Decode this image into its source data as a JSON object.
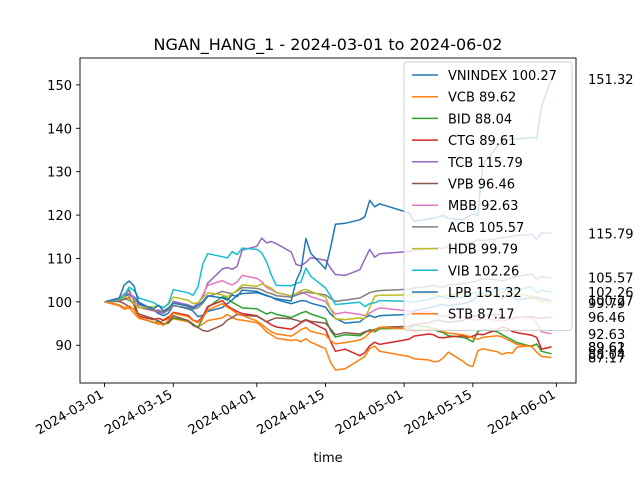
{
  "chart_data": {
    "type": "line",
    "title": "NGAN_HANG_1 - 2024-03-01 to 2024-06-02",
    "xlabel": "time",
    "ylabel": "",
    "x_type": "date",
    "xlim": [
      "2024-02-25",
      "2024-06-05"
    ],
    "ylim": [
      81.3,
      156.2
    ],
    "x_ticks": [
      "2024-03-01",
      "2024-03-15",
      "2024-04-01",
      "2024-04-15",
      "2024-05-01",
      "2024-05-15",
      "2024-06-01"
    ],
    "y_ticks": [
      90,
      100,
      110,
      120,
      130,
      140,
      150
    ],
    "grid": false,
    "legend_position": "upper-right",
    "dates": [
      "2024-03-01",
      "2024-03-04",
      "2024-03-05",
      "2024-03-06",
      "2024-03-07",
      "2024-03-08",
      "2024-03-11",
      "2024-03-12",
      "2024-03-13",
      "2024-03-14",
      "2024-03-15",
      "2024-03-18",
      "2024-03-19",
      "2024-03-20",
      "2024-03-21",
      "2024-03-22",
      "2024-03-25",
      "2024-03-26",
      "2024-03-27",
      "2024-03-28",
      "2024-03-29",
      "2024-04-01",
      "2024-04-02",
      "2024-04-03",
      "2024-04-04",
      "2024-04-05",
      "2024-04-08",
      "2024-04-09",
      "2024-04-10",
      "2024-04-11",
      "2024-04-12",
      "2024-04-15",
      "2024-04-16",
      "2024-04-17",
      "2024-04-19",
      "2024-04-22",
      "2024-04-23",
      "2024-04-24",
      "2024-04-25",
      "2024-04-26",
      "2024-05-02",
      "2024-05-03",
      "2024-05-06",
      "2024-05-07",
      "2024-05-08",
      "2024-05-09",
      "2024-05-10",
      "2024-05-13",
      "2024-05-14",
      "2024-05-15",
      "2024-05-16",
      "2024-05-17",
      "2024-05-20",
      "2024-05-21",
      "2024-05-22",
      "2024-05-23",
      "2024-05-24",
      "2024-05-27",
      "2024-05-28",
      "2024-05-29",
      "2024-05-31"
    ],
    "series": [
      {
        "name": "VNINDEX 100.27",
        "end_label": "100.27",
        "color": "#1f77b4",
        "values": [
          100,
          100.6,
          101.4,
          101.8,
          101.2,
          99.9,
          98.1,
          97.3,
          96.8,
          97.4,
          99.2,
          98.4,
          97.9,
          96.6,
          96.9,
          97.8,
          98.7,
          99.6,
          100.4,
          101.6,
          101.9,
          102.1,
          101.8,
          101.4,
          101.1,
          100.5,
          99.6,
          99.9,
          100.3,
          100.2,
          99.7,
          98.8,
          97.2,
          96.2,
          95.1,
          95.4,
          96.3,
          96.9,
          96.4,
          96.8,
          97.1,
          97.9,
          98.6,
          98.9,
          99.2,
          99.4,
          99.1,
          99.6,
          99.9,
          100.3,
          101.6,
          101.9,
          101.3,
          100.8,
          101.5,
          101.1,
          100.5,
          100.9,
          101.1,
          100.7,
          100.27
        ]
      },
      {
        "name": "VCB 89.62",
        "end_label": "89.62",
        "color": "#ff7f0e",
        "values": [
          100,
          99.1,
          98.3,
          98.6,
          97.4,
          96.2,
          95.3,
          94.8,
          95.9,
          96.6,
          96.1,
          95.4,
          94.7,
          94.2,
          94.9,
          95.7,
          96.3,
          97.1,
          96.4,
          95.9,
          95.8,
          95.2,
          94.3,
          93.1,
          92.4,
          91.6,
          91.1,
          91.3,
          90.8,
          91.5,
          90.7,
          89.2,
          86.1,
          84.3,
          84.6,
          86.7,
          87.4,
          89.3,
          89.8,
          88.6,
          87.4,
          86.9,
          86.6,
          86.2,
          86.3,
          87.1,
          88.4,
          86.3,
          85.4,
          85.1,
          88.7,
          89.2,
          88.5,
          87.9,
          88.3,
          88.2,
          89.6,
          89.9,
          90.2,
          89.1,
          89.62
        ]
      },
      {
        "name": "BID 88.04",
        "end_label": "88.04",
        "color": "#2ca02c",
        "values": [
          100,
          100.4,
          101.1,
          102.8,
          100.3,
          96.4,
          95.2,
          95.6,
          94.8,
          95.1,
          96.3,
          95.7,
          94.9,
          94.1,
          96.2,
          98.7,
          101.2,
          100.8,
          99.9,
          99.3,
          98.6,
          98.4,
          97.8,
          97.2,
          97.6,
          97.1,
          96.4,
          96.9,
          97.4,
          97.8,
          97.2,
          96.1,
          93.4,
          91.9,
          92.4,
          92.2,
          92.9,
          93.6,
          93.1,
          93.8,
          93.9,
          94.6,
          94.2,
          93.7,
          93.2,
          92.9,
          92.2,
          91.8,
          91.4,
          90.8,
          93.2,
          93.6,
          93.1,
          92.4,
          91.8,
          91.2,
          90.6,
          89.7,
          90.3,
          88.6,
          88.04
        ]
      },
      {
        "name": "CTG 89.61",
        "end_label": "89.61",
        "color": "#d62728",
        "values": [
          100,
          100.2,
          100.6,
          101.1,
          99.3,
          96.7,
          95.9,
          96.2,
          95.7,
          96.3,
          97.6,
          96.9,
          95.8,
          95.4,
          96.7,
          98.9,
          100.3,
          99.1,
          98.4,
          97.8,
          97.3,
          96.8,
          96.1,
          95.4,
          94.7,
          94.2,
          93.7,
          94.4,
          95.2,
          95.8,
          95.3,
          93.6,
          90.9,
          88.6,
          89.1,
          87.6,
          88.3,
          89.9,
          90.7,
          90.2,
          91.4,
          92.1,
          92.6,
          92.4,
          91.8,
          91.7,
          91.9,
          92.2,
          91.8,
          92.1,
          92.6,
          92.4,
          93.6,
          94.2,
          93.9,
          93.2,
          92.9,
          92.3,
          91.8,
          89.1,
          89.61
        ]
      },
      {
        "name": "TCB 115.79",
        "end_label": "115.79",
        "color": "#9467bd",
        "values": [
          100,
          100.5,
          101.3,
          101.6,
          100.8,
          99.4,
          98.1,
          97.6,
          97.4,
          98.2,
          100.1,
          99.3,
          98.8,
          99.6,
          101.2,
          104.3,
          107.6,
          107.9,
          107.5,
          108.2,
          111.9,
          112.8,
          114.7,
          113.6,
          113.9,
          113.4,
          111.5,
          108.6,
          108.3,
          109.1,
          110.2,
          109.6,
          107.8,
          106.3,
          106.1,
          107.4,
          109.8,
          112.1,
          110.3,
          111.1,
          111.6,
          111.9,
          112.2,
          112.4,
          112.5,
          112.3,
          112.8,
          113.2,
          113.5,
          113.7,
          114.3,
          114.1,
          114.6,
          114.8,
          114.9,
          115.1,
          115.3,
          115.6,
          114.4,
          115.9,
          115.79
        ]
      },
      {
        "name": "VPB 96.46",
        "end_label": "96.46",
        "color": "#8c564b",
        "values": [
          100,
          100.1,
          99.6,
          98.9,
          98.3,
          97.2,
          96.1,
          95.6,
          94.9,
          95.3,
          96.8,
          95.7,
          94.6,
          94.1,
          93.4,
          93.2,
          94.7,
          95.8,
          96.4,
          97.1,
          96.9,
          96.7,
          96.1,
          95.4,
          95.9,
          96.3,
          96.1,
          95.8,
          95.4,
          95.9,
          95.5,
          95.1,
          93.8,
          92.4,
          92.9,
          92.6,
          93.1,
          93.3,
          93.6,
          94.1,
          94.4,
          94.8,
          95.2,
          95.6,
          95.8,
          95.5,
          95.3,
          95.7,
          96.2,
          96.6,
          96.9,
          96.8,
          97.1,
          96.7,
          96.3,
          96.1,
          96.4,
          96.6,
          96.2,
          96.3,
          96.46
        ]
      },
      {
        "name": "MBB 92.63",
        "end_label": "92.63",
        "color": "#e377c2",
        "values": [
          100,
          100.8,
          101.9,
          102.4,
          100.9,
          98.7,
          97.9,
          98.2,
          97.6,
          98.4,
          99.8,
          99.1,
          98.5,
          99.3,
          101.6,
          103.8,
          104.9,
          104.3,
          103.9,
          104.6,
          106.1,
          105.4,
          104.7,
          103.3,
          102.8,
          102.1,
          101.4,
          101.9,
          102.3,
          101.8,
          101.2,
          100.1,
          98.4,
          97.2,
          97.6,
          97.1,
          96.8,
          97.4,
          98.1,
          98.6,
          97.9,
          97.4,
          97.8,
          97.2,
          96.9,
          96.6,
          96.8,
          96.4,
          96.1,
          95.9,
          95.7,
          96.1,
          95.8,
          95.5,
          95.9,
          96.3,
          96.6,
          96.2,
          95.1,
          93.1,
          92.63
        ]
      },
      {
        "name": "ACB 105.57",
        "end_label": "105.57",
        "color": "#7f7f7f",
        "values": [
          100,
          100.3,
          100.7,
          100.4,
          99.6,
          98.8,
          98.1,
          97.9,
          97.6,
          98.1,
          99.1,
          98.7,
          98.3,
          98.6,
          99.7,
          101.2,
          102.4,
          102.1,
          101.9,
          102.5,
          103.3,
          103.1,
          102.8,
          102.2,
          101.9,
          101.4,
          101.1,
          101.5,
          101.9,
          102.3,
          102.1,
          101.6,
          100.8,
          100.1,
          100.4,
          100.9,
          101.5,
          102.1,
          102.4,
          102.6,
          102.9,
          103.2,
          103.6,
          103.8,
          103.5,
          103.4,
          103.9,
          104.2,
          104.4,
          104.6,
          104.9,
          105.3,
          105.1,
          104.8,
          105.2,
          105.6,
          105.9,
          106.4,
          105.2,
          105.8,
          105.57
        ]
      },
      {
        "name": "HDB 99.79",
        "end_label": "99.79",
        "color": "#bcbd22",
        "values": [
          100,
          100.6,
          101.2,
          100.8,
          99.7,
          98.6,
          98.9,
          99.1,
          98.7,
          99.4,
          101.1,
          100.4,
          99.6,
          99.8,
          100.9,
          102.1,
          101.6,
          101.2,
          101.8,
          102.7,
          103.9,
          103.6,
          104.1,
          103.7,
          103.1,
          102.2,
          101.4,
          101.9,
          102.6,
          102.9,
          102.4,
          101.1,
          98.4,
          96.1,
          95.9,
          96.3,
          96.1,
          98.7,
          101.3,
          101.5,
          101.6,
          101.9,
          102.1,
          101.8,
          101.4,
          101.2,
          101.6,
          101.9,
          102.3,
          102.1,
          101.7,
          101.4,
          101.9,
          102.2,
          102.4,
          102.1,
          101.8,
          101.3,
          100.6,
          100.1,
          99.79
        ]
      },
      {
        "name": "VIB 102.26",
        "end_label": "102.26",
        "color": "#17becf",
        "values": [
          100,
          100.7,
          101.5,
          103.4,
          102.6,
          100.9,
          99.8,
          99.1,
          98.7,
          99.6,
          102.8,
          102.1,
          101.5,
          103.4,
          108.7,
          111.1,
          110.4,
          110.1,
          111.6,
          110.9,
          112.4,
          112.1,
          111.3,
          109.2,
          106.1,
          103.8,
          103.7,
          104.2,
          104.6,
          107.8,
          105.9,
          103.2,
          101.4,
          99.4,
          99.6,
          99.9,
          98.9,
          99.6,
          99.8,
          100.3,
          100.1,
          99.9,
          100.6,
          100.9,
          101.3,
          101.1,
          100.8,
          101.2,
          101.6,
          101.9,
          102.3,
          101.9,
          102.6,
          103.1,
          102.8,
          102.4,
          102.9,
          103.4,
          102.1,
          102.7,
          102.26
        ]
      },
      {
        "name": "LPB 151.32",
        "end_label": "151.32",
        "color": "#1f77b4",
        "values": [
          100,
          100.9,
          103.9,
          104.8,
          103.7,
          99.6,
          98.4,
          99.2,
          97.9,
          98.6,
          99.7,
          99.1,
          98.6,
          99.2,
          100.1,
          101.4,
          100.9,
          100.4,
          101.6,
          101.2,
          102.7,
          102.4,
          101.9,
          101.5,
          101.1,
          100.7,
          100.2,
          104.8,
          107.3,
          114.6,
          111.2,
          107.6,
          112.4,
          117.9,
          118.1,
          118.9,
          119.6,
          123.4,
          121.9,
          122.6,
          120.5,
          118.6,
          119.1,
          119.3,
          119.6,
          119.9,
          119.2,
          118.9,
          119.7,
          120.2,
          119.9,
          131.6,
          135.8,
          136.6,
          137.4,
          137.6,
          137.5,
          137.9,
          137.7,
          145.2,
          151.32
        ]
      },
      {
        "name": "STB 87.17",
        "end_label": "87.17",
        "color": "#ff7f0e",
        "values": [
          100,
          99.3,
          98.6,
          99.1,
          98.2,
          96.4,
          95.3,
          95.1,
          94.6,
          95.8,
          97.4,
          96.6,
          95.7,
          95.2,
          96.3,
          98.1,
          99.6,
          98.8,
          98.1,
          97.3,
          96.9,
          95.6,
          94.8,
          93.9,
          93.1,
          92.6,
          92.1,
          92.8,
          93.6,
          94.1,
          93.2,
          92.4,
          91.1,
          90.3,
          90.6,
          91.2,
          91.8,
          92.9,
          93.4,
          94.1,
          93.8,
          93.4,
          93.6,
          93.9,
          93.5,
          93.1,
          92.8,
          92.4,
          92.1,
          91.7,
          91.4,
          91.8,
          92.2,
          91.9,
          91.3,
          90.8,
          90.2,
          89.7,
          88.4,
          87.4,
          87.17
        ]
      }
    ]
  }
}
